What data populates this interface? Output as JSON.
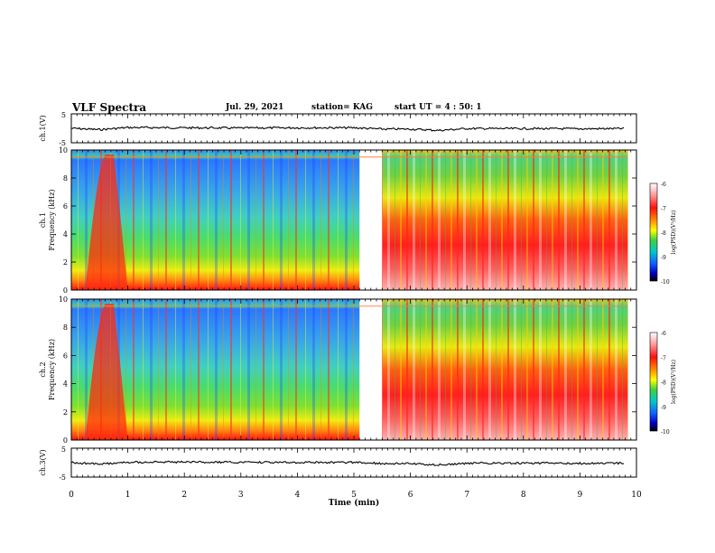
{
  "header": {
    "title": "VLF Spectra",
    "date": "Jul. 29, 2021",
    "station": "station= KAG",
    "start": "start UT =  4 : 50: 1"
  },
  "chart_data": [
    {
      "type": "line",
      "panel": "ch1-waveform",
      "ylabel": "ch.1(V)",
      "ylim": [
        -5,
        5
      ],
      "yticks": [
        5,
        -5
      ],
      "xlim": [
        0,
        10
      ],
      "series": [
        {
          "values_description_omitted": true,
          "x": [
            0,
            0.5,
            1,
            2,
            3,
            4,
            5,
            5.5,
            6,
            6.5,
            7,
            8,
            9,
            9.8
          ],
          "y": [
            0,
            -0.5,
            0.3,
            0.2,
            0.1,
            0.2,
            0.2,
            -0.3,
            -0.3,
            -0.8,
            -0.1,
            -0.1,
            -0.2,
            -0.1
          ]
        }
      ]
    },
    {
      "type": "heatmap",
      "panel": "ch1-spectrogram",
      "ylabel": "ch.1 Frequency (kHz)",
      "ylim": [
        0,
        10
      ],
      "yticks": [
        0,
        2,
        4,
        6,
        8,
        10
      ],
      "xlim": [
        0,
        10
      ],
      "data_gap": [
        5.1,
        5.5
      ],
      "colorbar": {
        "label": "log(PSD)(V²/Hz)",
        "range": [
          -10,
          -6
        ],
        "ticks": [
          -6,
          -7,
          -8,
          -9,
          -10
        ]
      }
    },
    {
      "type": "heatmap",
      "panel": "ch2-spectrogram",
      "ylabel": "ch.2 Frequency (kHz)",
      "ylim": [
        0,
        10
      ],
      "yticks": [
        0,
        2,
        4,
        6,
        8,
        10
      ],
      "xlim": [
        0,
        10
      ],
      "data_gap": [
        5.1,
        5.5
      ],
      "colorbar": {
        "label": "log(PSD)(V²/Hz)",
        "range": [
          -10,
          -6
        ],
        "ticks": [
          -6,
          -7,
          -8,
          -9,
          -10
        ]
      }
    },
    {
      "type": "line",
      "panel": "ch3-waveform",
      "ylabel": "ch.3(V)",
      "ylim": [
        -5,
        5
      ],
      "yticks": [
        5,
        -5
      ],
      "xlim": [
        0,
        10
      ],
      "xlabel": "Time (min)",
      "xticks": [
        0,
        1,
        2,
        3,
        4,
        5,
        6,
        7,
        8,
        9,
        10
      ],
      "series": [
        {
          "x": [
            0,
            0.5,
            1,
            2,
            3,
            4,
            5,
            5.5,
            6,
            6.5,
            7,
            8,
            9,
            9.8
          ],
          "y": [
            0,
            -0.6,
            0.2,
            0.2,
            0.1,
            0.1,
            0.1,
            -0.3,
            -0.3,
            -0.9,
            -0.2,
            -0.2,
            -0.3,
            -0.2
          ]
        }
      ]
    }
  ],
  "axes": {
    "ch1_v": {
      "label": "ch.1(V)",
      "ticks": [
        "5",
        "-5"
      ]
    },
    "ch3_v": {
      "label": "ch.3(V)",
      "ticks": [
        "5",
        "-5"
      ]
    },
    "freq_ticks": [
      "0",
      "2",
      "4",
      "6",
      "8",
      "10"
    ],
    "ch1_freq_label_a": "ch.1",
    "ch1_freq_label_b": "Frequency (kHz)",
    "ch2_freq_label_a": "ch.2",
    "ch2_freq_label_b": "Frequency (kHz)",
    "time_ticks": [
      "0",
      "1",
      "2",
      "3",
      "4",
      "5",
      "6",
      "7",
      "8",
      "9",
      "10"
    ],
    "time_label": "Time (min)",
    "colorbar_label": "log(PSD)(V²/Hz)",
    "colorbar_ticks": [
      "-6",
      "-7",
      "-8",
      "-9",
      "-10"
    ]
  }
}
